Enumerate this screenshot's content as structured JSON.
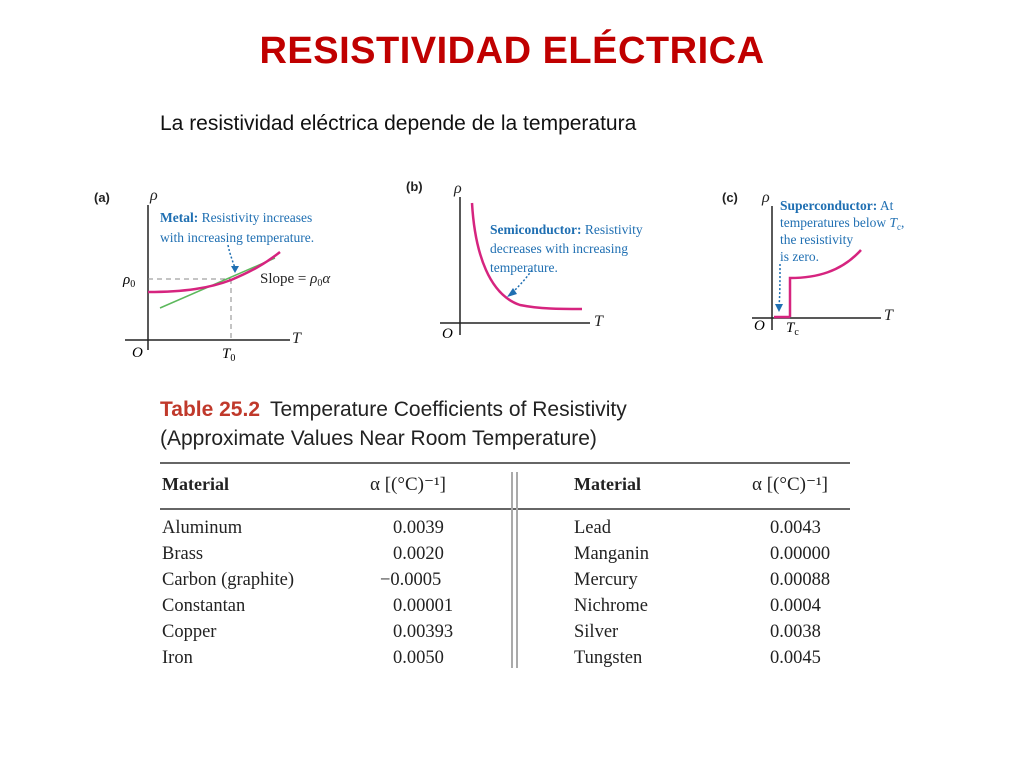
{
  "title": "RESISTIVIDAD ELÉCTRICA",
  "subtitle": "La resistividad eléctrica depende de la temperatura",
  "graphs": {
    "a": {
      "letter": "(a)",
      "rho": "ρ",
      "rho0": "ρ",
      "rho0_sub": "0",
      "T": "T",
      "T0": "T",
      "T0_sub": "0",
      "origin": "O",
      "ann_bold": "Metal:",
      "ann_line1": "Resistivity increases",
      "ann_line2": "with increasing temperature.",
      "slope_label": "Slope = ",
      "slope_expr": "ρ",
      "slope_sub": "0",
      "slope_alpha": "α"
    },
    "b": {
      "letter": "(b)",
      "rho": "ρ",
      "T": "T",
      "origin": "O",
      "ann_bold": "Semiconductor:",
      "ann_line1": "Resistivity",
      "ann_line2": "decreases with increasing",
      "ann_line3": "temperature."
    },
    "c": {
      "letter": "(c)",
      "rho": "ρ",
      "T": "T",
      "Tc": "T",
      "Tc_sub": "c",
      "origin": "O",
      "ann_bold": "Superconductor:",
      "ann_line1_tail": "At",
      "ann_line2": "temperatures below ",
      "ann_line2_T": "T",
      "ann_line2_sub": "c",
      "ann_line2_end": ",",
      "ann_line3": "the resistivity",
      "ann_line4": "is zero."
    }
  },
  "table": {
    "number": "Table 25.2",
    "title_line1": "Temperature Coefficients of Resistivity",
    "title_line2": "(Approximate Values Near Room Temperature)",
    "header_material": "Material",
    "header_alpha": "α [(°C)⁻¹]",
    "left": [
      {
        "material": "Aluminum",
        "alpha": "0.0039"
      },
      {
        "material": "Brass",
        "alpha": "0.0020"
      },
      {
        "material": "Carbon (graphite)",
        "alpha": "−0.0005"
      },
      {
        "material": "Constantan",
        "alpha": "0.00001"
      },
      {
        "material": "Copper",
        "alpha": "0.00393"
      },
      {
        "material": "Iron",
        "alpha": "0.0050"
      }
    ],
    "right": [
      {
        "material": "Lead",
        "alpha": "0.0043"
      },
      {
        "material": "Manganin",
        "alpha": "0.00000"
      },
      {
        "material": "Mercury",
        "alpha": "0.00088"
      },
      {
        "material": "Nichrome",
        "alpha": "0.0004"
      },
      {
        "material": "Silver",
        "alpha": "0.0038"
      },
      {
        "material": "Tungsten",
        "alpha": "0.0045"
      }
    ]
  },
  "colors": {
    "title": "#c00000",
    "curve": "#d6247f",
    "annotation": "#1f6fb2",
    "slope_line": "#5cb85c",
    "table_number": "#c0392b"
  }
}
